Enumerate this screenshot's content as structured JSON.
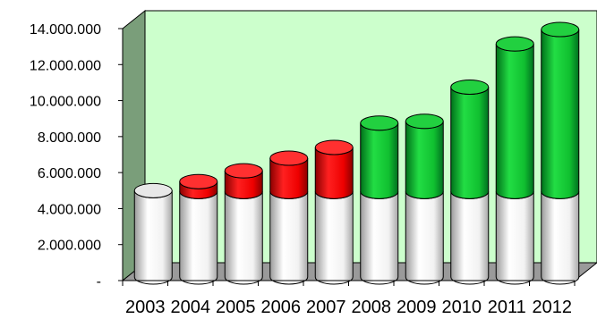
{
  "chart_data": {
    "type": "bar",
    "style": "3d-cylinder-stacked",
    "categories": [
      "2003",
      "2004",
      "2005",
      "2006",
      "2007",
      "2008",
      "2009",
      "2010",
      "2011",
      "2012"
    ],
    "series": [
      {
        "values": [
          4800000,
          4750000,
          4750000,
          4750000,
          4750000,
          4750000,
          4750000,
          4750000,
          4750000,
          4750000
        ],
        "color": "#ffffff"
      },
      {
        "values": [
          0,
          550000,
          1150000,
          1850000,
          2450000,
          0,
          0,
          0,
          0,
          0
        ],
        "color": "#ff0000"
      },
      {
        "values": [
          0,
          0,
          0,
          0,
          0,
          3800000,
          3900000,
          5800000,
          8200000,
          9000000
        ],
        "color": "#00c832"
      }
    ],
    "ylim": [
      0,
      14000000
    ],
    "yticks": [
      0,
      2000000,
      4000000,
      6000000,
      8000000,
      10000000,
      12000000,
      14000000
    ],
    "ytick_labels": [
      "-",
      "2.000.000",
      "4.000.000",
      "6.000.000",
      "8.000.000",
      "10.000.000",
      "12.000.000",
      "14.000.000"
    ],
    "wall_color": "#ccffcc",
    "side_wall_color": "#7a9e7a",
    "floor_color": "#9a9a9a",
    "grid": false,
    "title": "",
    "xlabel": "",
    "ylabel": ""
  }
}
